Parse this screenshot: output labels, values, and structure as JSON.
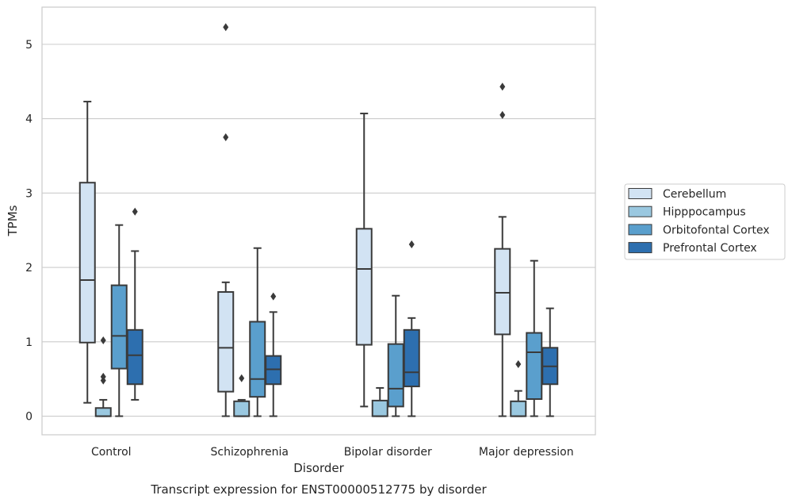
{
  "chart_data": {
    "type": "box",
    "caption": "Transcript expression for ENST00000512775 by disorder",
    "xlabel": "Disorder",
    "ylabel": "TPMs",
    "ylim": [
      -0.25,
      5.5
    ],
    "yticks": [
      "0",
      "1",
      "2",
      "3",
      "4",
      "5"
    ],
    "grid": "horizontal",
    "legend_position": "right",
    "categories": [
      "Control",
      "Schizophrenia",
      "Bipolar disorder",
      "Major depression"
    ],
    "series": [
      {
        "name": "Cerebellum",
        "color": "#d2e3f3",
        "boxes": [
          {
            "whisker_low": 0.18,
            "q1": 0.99,
            "median": 1.83,
            "q3": 3.14,
            "whisker_high": 4.23,
            "outliers": []
          },
          {
            "whisker_low": 0.0,
            "q1": 0.33,
            "median": 0.92,
            "q3": 1.67,
            "whisker_high": 1.8,
            "outliers": [
              3.75,
              5.23
            ]
          },
          {
            "whisker_low": 0.13,
            "q1": 0.96,
            "median": 1.98,
            "q3": 2.52,
            "whisker_high": 4.07,
            "outliers": []
          },
          {
            "whisker_low": 0.0,
            "q1": 1.1,
            "median": 1.66,
            "q3": 2.25,
            "whisker_high": 2.68,
            "outliers": [
              4.05,
              4.43
            ]
          }
        ]
      },
      {
        "name": "Hipppocampus",
        "color": "#9ac8e0",
        "boxes": [
          {
            "whisker_low": 0.0,
            "q1": 0.0,
            "median": 0.0,
            "q3": 0.11,
            "whisker_high": 0.22,
            "outliers": [
              0.48,
              0.53,
              1.02
            ]
          },
          {
            "whisker_low": 0.0,
            "q1": 0.0,
            "median": 0.0,
            "q3": 0.2,
            "whisker_high": 0.22,
            "outliers": [
              0.51
            ]
          },
          {
            "whisker_low": 0.0,
            "q1": 0.0,
            "median": 0.0,
            "q3": 0.21,
            "whisker_high": 0.38,
            "outliers": []
          },
          {
            "whisker_low": 0.0,
            "q1": 0.0,
            "median": 0.0,
            "q3": 0.2,
            "whisker_high": 0.34,
            "outliers": [
              0.7
            ]
          }
        ]
      },
      {
        "name": "Orbitofontal Cortex",
        "color": "#5a9fcd",
        "boxes": [
          {
            "whisker_low": 0.0,
            "q1": 0.64,
            "median": 1.08,
            "q3": 1.76,
            "whisker_high": 2.57,
            "outliers": []
          },
          {
            "whisker_low": 0.0,
            "q1": 0.26,
            "median": 0.5,
            "q3": 1.27,
            "whisker_high": 2.26,
            "outliers": []
          },
          {
            "whisker_low": 0.0,
            "q1": 0.13,
            "median": 0.37,
            "q3": 0.97,
            "whisker_high": 1.62,
            "outliers": []
          },
          {
            "whisker_low": 0.0,
            "q1": 0.23,
            "median": 0.86,
            "q3": 1.12,
            "whisker_high": 2.09,
            "outliers": []
          }
        ]
      },
      {
        "name": "Prefrontal Cortex",
        "color": "#2d6faf",
        "boxes": [
          {
            "whisker_low": 0.22,
            "q1": 0.43,
            "median": 0.82,
            "q3": 1.16,
            "whisker_high": 2.22,
            "outliers": [
              2.75
            ]
          },
          {
            "whisker_low": 0.0,
            "q1": 0.43,
            "median": 0.63,
            "q3": 0.81,
            "whisker_high": 1.4,
            "outliers": [
              1.61
            ]
          },
          {
            "whisker_low": 0.0,
            "q1": 0.4,
            "median": 0.59,
            "q3": 1.16,
            "whisker_high": 1.32,
            "outliers": [
              2.31
            ]
          },
          {
            "whisker_low": 0.0,
            "q1": 0.43,
            "median": 0.67,
            "q3": 0.92,
            "whisker_high": 1.45,
            "outliers": []
          }
        ]
      }
    ]
  }
}
